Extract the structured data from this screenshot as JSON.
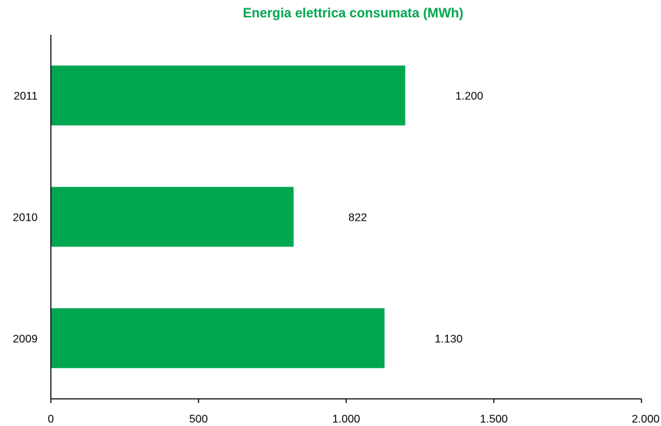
{
  "chart_data": {
    "type": "bar",
    "orientation": "horizontal",
    "title": "Energia elettrica consumata (MWh)",
    "xlabel": "",
    "ylabel": "",
    "categories": [
      "2009",
      "2010",
      "2011"
    ],
    "values": [
      1130,
      822,
      1200
    ],
    "value_labels": [
      "1.130",
      "822",
      "1.200"
    ],
    "xlim": [
      0,
      2000
    ],
    "x_ticks": [
      0,
      500,
      1000,
      1500,
      2000
    ],
    "x_tick_labels": [
      "0",
      "500",
      "1.000",
      "1.500",
      "2.000"
    ],
    "grid": false,
    "legend": "none",
    "bar_color": "#00A650",
    "title_color": "#00A650"
  }
}
